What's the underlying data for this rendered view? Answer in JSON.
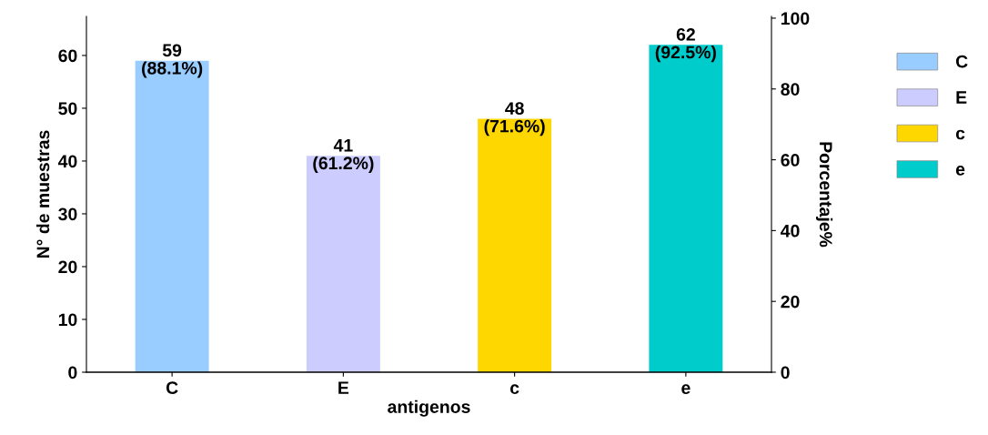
{
  "chart_data": {
    "type": "bar",
    "xlabel": "antigenos",
    "ylabel": "N° de muestras",
    "y2label": "Porcentaje%",
    "categories": [
      "C",
      "E",
      "c",
      "e"
    ],
    "series": [
      {
        "name": "C",
        "color": "#99ccff",
        "values": [
          59,
          null,
          null,
          null
        ],
        "value_labels": [
          "59\n(88.1%)",
          null,
          null,
          null
        ]
      },
      {
        "name": "E",
        "color": "#ccccff",
        "values": [
          null,
          41,
          null,
          null
        ],
        "value_labels": [
          null,
          "41\n(61.2%)",
          null,
          null
        ]
      },
      {
        "name": "c",
        "color": "#ffd700",
        "values": [
          null,
          null,
          48,
          null
        ],
        "value_labels": [
          null,
          null,
          "48\n(71.6%)",
          null
        ]
      },
      {
        "name": "e",
        "color": "#00cccc",
        "values": [
          null,
          null,
          null,
          62
        ],
        "value_labels": [
          null,
          null,
          null,
          "62\n(92.5%)"
        ]
      }
    ],
    "ylim": [
      0,
      67.4
    ],
    "yticks": [
      0,
      10,
      20,
      30,
      40,
      50,
      60
    ],
    "y2lim": [
      0,
      100.5
    ],
    "y2ticks": [
      0,
      20,
      40,
      60,
      80,
      100
    ],
    "grid": false,
    "legend": "right"
  }
}
